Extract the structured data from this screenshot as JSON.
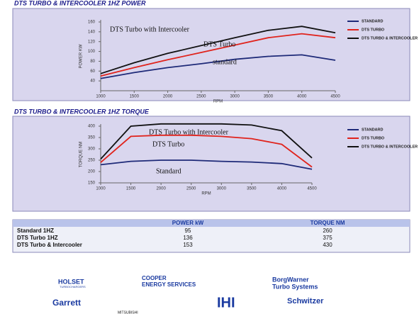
{
  "chart_data": [
    {
      "type": "line",
      "title": "DTS TURBO & INTERCOOLER 1HZ POWER",
      "ylabel": "POWER KW",
      "xlabel": "RPM",
      "x": [
        1000,
        1500,
        2000,
        2500,
        3000,
        3500,
        4000,
        4500
      ],
      "series": [
        {
          "name": "STANDARD",
          "color": "#1e2a78",
          "values": [
            45,
            57,
            67,
            75,
            84,
            90,
            93,
            82
          ]
        },
        {
          "name": "DTS TURBO",
          "color": "#e0231c",
          "values": [
            50,
            67,
            83,
            98,
            113,
            128,
            136,
            128
          ]
        },
        {
          "name": "DTS TURBO & INTERCOOLER",
          "color": "#111111",
          "values": [
            55,
            77,
            96,
            112,
            128,
            143,
            151,
            138
          ]
        }
      ],
      "annotations": [
        "DTS Turbo with Intercooler",
        "DTS Turbo",
        "standard"
      ],
      "xlim": [
        1000,
        4500
      ],
      "xticks": [
        1000,
        1500,
        2000,
        2500,
        3000,
        3500,
        4000,
        4500
      ],
      "ylim": [
        20,
        160
      ],
      "yticks": [
        40,
        60,
        80,
        100,
        120,
        140,
        160
      ]
    },
    {
      "type": "line",
      "title": "DTS TURBO & INTERCOOLER 1HZ TORQUE",
      "ylabel": "TORQUE NM",
      "xlabel": "RPM",
      "x": [
        1000,
        1500,
        2000,
        2500,
        3000,
        3500,
        4000,
        4500
      ],
      "series": [
        {
          "name": "STANDARD",
          "color": "#1e2a78",
          "values": [
            230,
            245,
            250,
            250,
            245,
            242,
            235,
            210
          ]
        },
        {
          "name": "DTS TURBO",
          "color": "#e0231c",
          "values": [
            240,
            355,
            360,
            360,
            355,
            345,
            320,
            220
          ]
        },
        {
          "name": "DTS TURBO & INTERCOOLER",
          "color": "#111111",
          "values": [
            255,
            400,
            410,
            410,
            410,
            405,
            380,
            260
          ]
        }
      ],
      "annotations": [
        "DTS Turbo with Intercooler",
        "DTS Turbo",
        "Standard"
      ],
      "xlim": [
        1000,
        4500
      ],
      "xticks": [
        1000,
        1500,
        2000,
        2500,
        3000,
        3500,
        4000,
        4500
      ],
      "ylim": [
        150,
        400
      ],
      "yticks": [
        150,
        200,
        250,
        300,
        350,
        400
      ]
    }
  ],
  "table": {
    "header": [
      "",
      "POWER kW",
      "TORQUE NM"
    ],
    "rows": [
      [
        "Standard 1HZ",
        "95",
        "260"
      ],
      [
        "DTS Turbo 1HZ",
        "136",
        "375"
      ],
      [
        "DTS Turbo & Intercooler",
        "153",
        "430"
      ]
    ]
  },
  "logos": [
    "HOLSET",
    "TURBOCHARGERS",
    "COOPER",
    "ENERGY SERVICES",
    "BorgWarner",
    "Turbo Systems",
    "Garrett",
    "MITSUBISHI",
    "IHI",
    "Schwitzer"
  ]
}
